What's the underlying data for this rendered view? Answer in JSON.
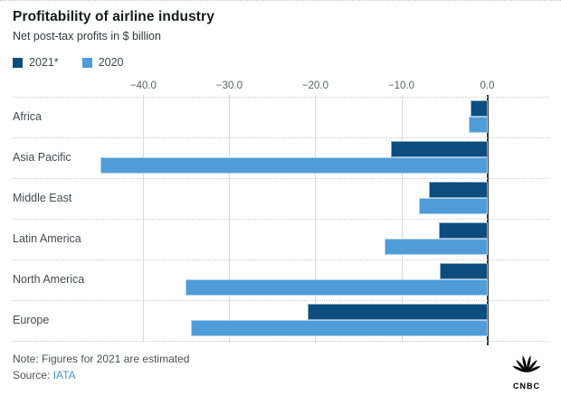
{
  "chart_data": {
    "type": "bar",
    "orientation": "horizontal",
    "title": "Profitability of airline industry",
    "subtitle": "Net post-tax profits in $ billion",
    "unit": "$ billion",
    "categories": [
      "Africa",
      "Asia Pacific",
      "Middle East",
      "Latin America",
      "North America",
      "Europe"
    ],
    "series": [
      {
        "name": "2021*",
        "color": "#0b4d7f",
        "values": [
          -1.9,
          -11.2,
          -6.8,
          -5.6,
          -5.5,
          -20.9
        ]
      },
      {
        "name": "2020",
        "color": "#4f9cd8",
        "values": [
          -2.2,
          -45.0,
          -7.9,
          -11.9,
          -35.1,
          -34.5
        ]
      }
    ],
    "x_axis": {
      "min": -47.2,
      "max": 7.1,
      "ticks": [
        -40,
        -30,
        -20,
        -10,
        0
      ],
      "tick_labels": [
        "−40.0",
        "−30.0",
        "−20.0",
        "−10.0",
        "0.0"
      ]
    },
    "grid": "vertical-gridlines-on, dotted-row-separators",
    "legend_position": "top-left"
  },
  "footer": {
    "note": "Note: Figures for 2021 are estimated",
    "source_label": "Source:",
    "source_link_text": "IATA",
    "link_color": "#4593d0"
  },
  "branding": {
    "name": "CNBC"
  }
}
